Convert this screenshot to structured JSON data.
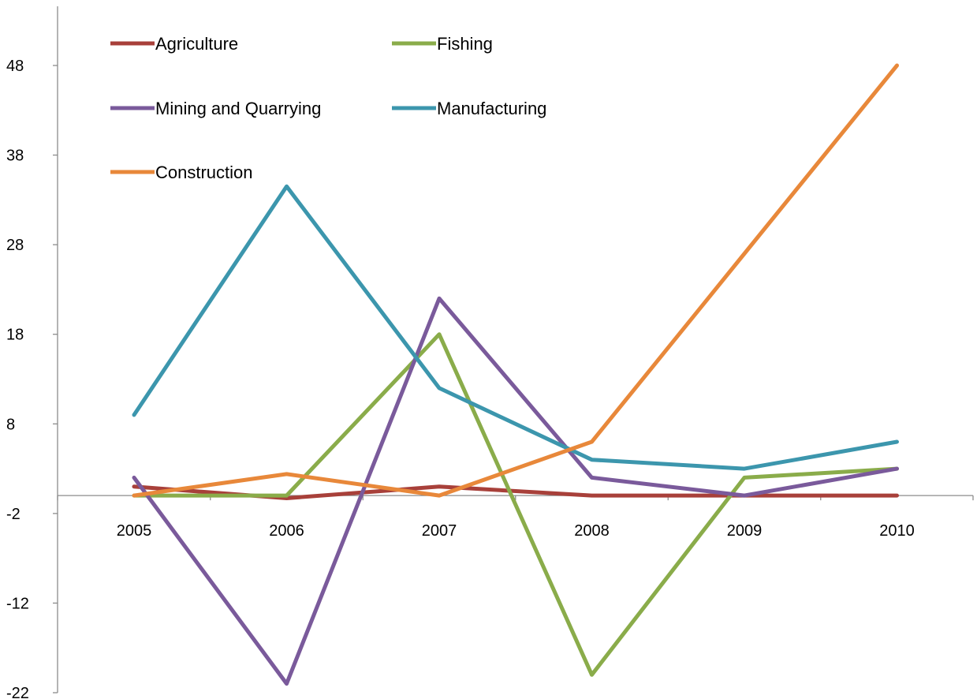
{
  "chart_data": {
    "type": "line",
    "title": "",
    "xlabel": "",
    "ylabel": "",
    "categories": [
      "2005",
      "2006",
      "2007",
      "2008",
      "2009",
      "2010"
    ],
    "ylim": [
      -22,
      52
    ],
    "yticks": [
      -22,
      -12,
      -2,
      8,
      18,
      28,
      38,
      48
    ],
    "grid": false,
    "legend_position": "top-left",
    "series": [
      {
        "name": "Agriculture",
        "color": "#a8403a",
        "values": [
          1,
          -0.3,
          1,
          0,
          0,
          0
        ]
      },
      {
        "name": "Fishing",
        "color": "#8aac4a",
        "values": [
          0,
          0,
          18,
          -20,
          2,
          3
        ]
      },
      {
        "name": "Mining and Quarrying",
        "color": "#7a5a9b",
        "values": [
          2,
          -21,
          22,
          2,
          0,
          3
        ]
      },
      {
        "name": "Manufacturing",
        "color": "#3c96ad",
        "values": [
          9,
          34.5,
          12,
          4,
          3,
          6
        ]
      },
      {
        "name": "Construction",
        "color": "#e8883a",
        "values": [
          0,
          2.4,
          0,
          6,
          27,
          48
        ]
      }
    ]
  }
}
